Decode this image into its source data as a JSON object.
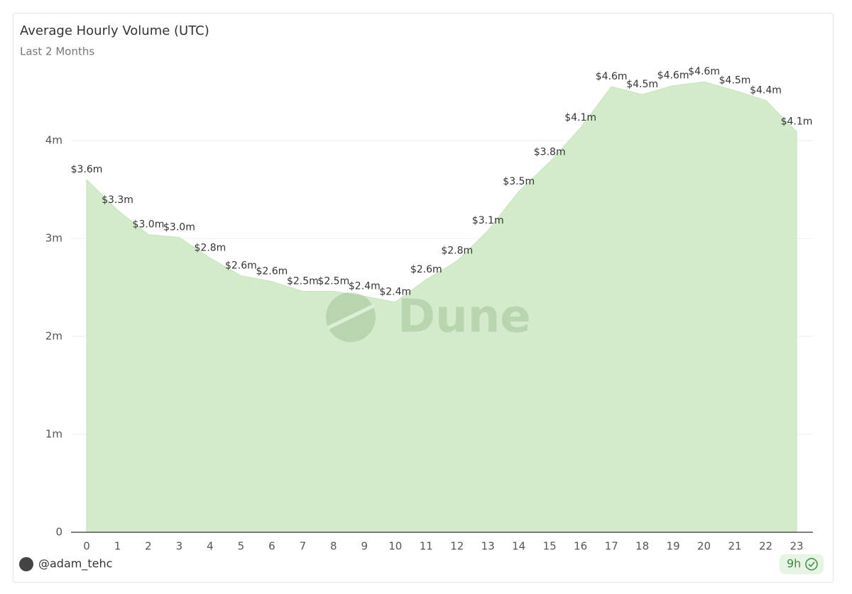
{
  "chart_data": {
    "type": "area",
    "title": "Average Hourly Volume (UTC)",
    "subtitle": "Last 2 Months",
    "watermark": "Dune",
    "author": "@adam_tehc",
    "refreshed": "9h",
    "categories": [
      "0",
      "1",
      "2",
      "3",
      "4",
      "5",
      "6",
      "7",
      "8",
      "9",
      "10",
      "11",
      "12",
      "13",
      "14",
      "15",
      "16",
      "17",
      "18",
      "19",
      "20",
      "21",
      "22",
      "23"
    ],
    "series": [
      {
        "name": "Average Hourly Volume",
        "color": "#d3ebcb",
        "values": [
          3.6,
          3.29,
          3.04,
          3.01,
          2.8,
          2.62,
          2.56,
          2.46,
          2.46,
          2.41,
          2.35,
          2.58,
          2.77,
          3.08,
          3.48,
          3.78,
          4.13,
          4.55,
          4.47,
          4.56,
          4.6,
          4.51,
          4.41,
          4.09
        ],
        "value_labels": [
          "$3.6m",
          "$3.3m",
          "$3.0m",
          "$3.0m",
          "$2.8m",
          "$2.6m",
          "$2.6m",
          "$2.5m",
          "$2.5m",
          "$2.4m",
          "$2.4m",
          "$2.6m",
          "$2.8m",
          "$3.1m",
          "$3.5m",
          "$3.8m",
          "$4.1m",
          "$4.6m",
          "$4.5m",
          "$4.6m",
          "$4.6m",
          "$4.5m",
          "$4.4m",
          "$4.1m"
        ]
      }
    ],
    "ylim": [
      0,
      5
    ],
    "yticks": [
      0,
      {
        "value": 1,
        "label": "1m"
      },
      {
        "value": 2,
        "label": "2m"
      },
      {
        "value": 3,
        "label": "3m"
      },
      {
        "value": 4,
        "label": "4m"
      }
    ],
    "grid": true
  }
}
